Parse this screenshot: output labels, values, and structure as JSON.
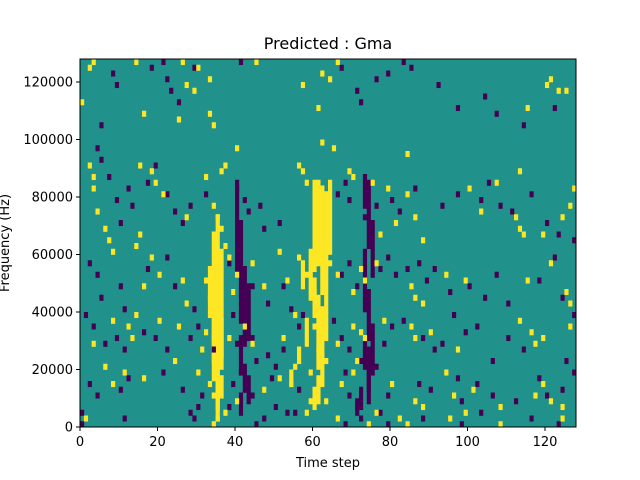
{
  "chart_data": {
    "type": "heatmap",
    "title": "Predicted : Gma",
    "xlabel": "Time step",
    "ylabel": "Frequency (Hz)",
    "xlim": [
      0,
      128
    ],
    "ylim": [
      0,
      128000
    ],
    "xticks": [
      0,
      20,
      40,
      60,
      80,
      100,
      120
    ],
    "yticks": [
      0,
      20000,
      40000,
      60000,
      80000,
      100000,
      120000
    ],
    "grid": false,
    "legend": "none",
    "colors": {
      "background": "#21918c",
      "high": "#fde725",
      "low": "#440154"
    },
    "cell": {
      "dx": 1,
      "dy": 2000
    },
    "high_cells": [
      [
        3,
        126000
      ],
      [
        2,
        124000
      ],
      [
        14,
        126000
      ],
      [
        26,
        126000
      ],
      [
        30,
        124000
      ],
      [
        45,
        126000
      ],
      [
        66,
        126000
      ],
      [
        27,
        118000
      ],
      [
        29,
        116000
      ],
      [
        33,
        120000
      ],
      [
        57,
        118000
      ],
      [
        64,
        120000
      ],
      [
        62,
        122000
      ],
      [
        0,
        112000
      ],
      [
        16,
        108000
      ],
      [
        25,
        106000
      ],
      [
        33,
        108000
      ],
      [
        34,
        104000
      ],
      [
        61,
        110000
      ],
      [
        40,
        96000
      ],
      [
        62,
        98000
      ],
      [
        65,
        96000
      ],
      [
        84,
        94000
      ],
      [
        115,
        110000
      ],
      [
        120,
        118000
      ],
      [
        121,
        120000
      ],
      [
        125,
        116000
      ],
      [
        123,
        116000
      ],
      [
        2,
        90000
      ],
      [
        3,
        86000
      ],
      [
        15,
        90000
      ],
      [
        18,
        88000
      ],
      [
        19,
        84000
      ],
      [
        21,
        80000
      ],
      [
        32,
        86000
      ],
      [
        36,
        88000
      ],
      [
        37,
        90000
      ],
      [
        57,
        88000
      ],
      [
        58,
        84000
      ],
      [
        56,
        90000
      ],
      [
        69,
        88000
      ],
      [
        70,
        86000
      ],
      [
        75,
        84000
      ],
      [
        79,
        82000
      ],
      [
        84,
        80000
      ],
      [
        100,
        82000
      ],
      [
        107,
        84000
      ],
      [
        113,
        88000
      ],
      [
        127,
        82000
      ],
      [
        3,
        82000
      ],
      [
        4,
        74000
      ],
      [
        6,
        68000
      ],
      [
        7,
        64000
      ],
      [
        8,
        60000
      ],
      [
        14,
        62000
      ],
      [
        15,
        66000
      ],
      [
        18,
        58000
      ],
      [
        27,
        72000
      ],
      [
        34,
        76000
      ],
      [
        35,
        72000
      ],
      [
        36,
        68000
      ],
      [
        37,
        62000
      ],
      [
        38,
        58000
      ],
      [
        51,
        60000
      ],
      [
        56,
        58000
      ],
      [
        77,
        66000
      ],
      [
        81,
        70000
      ],
      [
        86,
        72000
      ],
      [
        88,
        64000
      ],
      [
        103,
        74000
      ],
      [
        112,
        72000
      ],
      [
        113,
        68000
      ],
      [
        114,
        66000
      ],
      [
        119,
        66000
      ],
      [
        124,
        72000
      ],
      [
        126,
        76000
      ],
      [
        16,
        48000
      ],
      [
        20,
        52000
      ],
      [
        26,
        50000
      ],
      [
        27,
        42000
      ],
      [
        32,
        50000
      ],
      [
        33,
        44000
      ],
      [
        39,
        46000
      ],
      [
        40,
        52000
      ],
      [
        44,
        56000
      ],
      [
        47,
        48000
      ],
      [
        53,
        50000
      ],
      [
        58,
        52000
      ],
      [
        60,
        46000
      ],
      [
        64,
        56000
      ],
      [
        66,
        52000
      ],
      [
        70,
        46000
      ],
      [
        72,
        54000
      ],
      [
        73,
        50000
      ],
      [
        76,
        56000
      ],
      [
        85,
        48000
      ],
      [
        86,
        44000
      ],
      [
        88,
        42000
      ],
      [
        94,
        52000
      ],
      [
        99,
        50000
      ],
      [
        115,
        50000
      ],
      [
        121,
        56000
      ],
      [
        125,
        46000
      ],
      [
        126,
        42000
      ],
      [
        8,
        36000
      ],
      [
        12,
        34000
      ],
      [
        13,
        30000
      ],
      [
        14,
        38000
      ],
      [
        20,
        36000
      ],
      [
        25,
        34000
      ],
      [
        31,
        26000
      ],
      [
        32,
        32000
      ],
      [
        33,
        38000
      ],
      [
        38,
        30000
      ],
      [
        42,
        34000
      ],
      [
        44,
        28000
      ],
      [
        52,
        30000
      ],
      [
        55,
        38000
      ],
      [
        60,
        34000
      ],
      [
        61,
        26000
      ],
      [
        63,
        22000
      ],
      [
        66,
        28000
      ],
      [
        70,
        34000
      ],
      [
        72,
        32000
      ],
      [
        73,
        30000
      ],
      [
        78,
        36000
      ],
      [
        85,
        34000
      ],
      [
        86,
        30000
      ],
      [
        90,
        32000
      ],
      [
        97,
        26000
      ],
      [
        113,
        36000
      ],
      [
        116,
        32000
      ],
      [
        117,
        28000
      ],
      [
        119,
        30000
      ],
      [
        126,
        34000
      ],
      [
        3,
        28000
      ],
      [
        6,
        20000
      ],
      [
        8,
        14000
      ],
      [
        11,
        18000
      ],
      [
        16,
        16000
      ],
      [
        24,
        22000
      ],
      [
        30,
        18000
      ],
      [
        33,
        14000
      ],
      [
        34,
        10000
      ],
      [
        35,
        6000
      ],
      [
        40,
        8000
      ],
      [
        47,
        12000
      ],
      [
        51,
        16000
      ],
      [
        54,
        14000
      ],
      [
        55,
        20000
      ],
      [
        59,
        18000
      ],
      [
        60,
        12000
      ],
      [
        63,
        8000
      ],
      [
        67,
        14000
      ],
      [
        70,
        18000
      ],
      [
        71,
        22000
      ],
      [
        80,
        14000
      ],
      [
        86,
        8000
      ],
      [
        88,
        6000
      ],
      [
        94,
        18000
      ],
      [
        96,
        10000
      ],
      [
        99,
        4000
      ],
      [
        101,
        12000
      ],
      [
        108,
        6000
      ],
      [
        117,
        10000
      ],
      [
        119,
        14000
      ],
      [
        121,
        8000
      ],
      [
        124,
        6000
      ],
      [
        1,
        2000
      ],
      [
        34,
        0
      ],
      [
        35,
        2000
      ],
      [
        37,
        4000
      ],
      [
        58,
        4000
      ],
      [
        59,
        8000
      ],
      [
        66,
        2000
      ],
      [
        74,
        0
      ],
      [
        76,
        4000
      ],
      [
        82,
        2000
      ],
      [
        84,
        0
      ],
      [
        95,
        2000
      ],
      [
        108,
        0
      ],
      [
        124,
        2000
      ]
    ],
    "high_bands": [
      [
        35,
        72000,
        34000
      ],
      [
        34,
        66000,
        30000
      ],
      [
        36,
        60000,
        24000
      ],
      [
        33,
        54000,
        40000
      ],
      [
        34,
        48000,
        22000
      ],
      [
        35,
        42000,
        12000
      ],
      [
        36,
        36000,
        20000
      ],
      [
        34,
        30000,
        16000
      ],
      [
        35,
        22000,
        8000
      ],
      [
        36,
        16000,
        10000
      ],
      [
        35,
        10000,
        2000
      ],
      [
        60,
        84000,
        70000
      ],
      [
        61,
        84000,
        56000
      ],
      [
        62,
        82000,
        46000
      ],
      [
        63,
        80000,
        40000
      ],
      [
        64,
        84000,
        60000
      ],
      [
        60,
        70000,
        54000
      ],
      [
        59,
        60000,
        44000
      ],
      [
        60,
        50000,
        38000
      ],
      [
        61,
        44000,
        32000
      ],
      [
        62,
        40000,
        24000
      ],
      [
        63,
        38000,
        30000
      ],
      [
        61,
        30000,
        20000
      ],
      [
        62,
        24000,
        14000
      ],
      [
        61,
        16000,
        8000
      ],
      [
        60,
        10000,
        6000
      ],
      [
        57,
        56000,
        48000
      ],
      [
        58,
        36000,
        28000
      ],
      [
        56,
        26000,
        22000
      ],
      [
        54,
        18000,
        14000
      ]
    ],
    "low_cells": [
      [
        8,
        122000
      ],
      [
        9,
        118000
      ],
      [
        5,
        104000
      ],
      [
        4,
        96000
      ],
      [
        18,
        124000
      ],
      [
        21,
        126000
      ],
      [
        22,
        120000
      ],
      [
        23,
        116000
      ],
      [
        25,
        112000
      ],
      [
        29,
        124000
      ],
      [
        41,
        126000
      ],
      [
        67,
        124000
      ],
      [
        71,
        116000
      ],
      [
        72,
        112000
      ],
      [
        76,
        120000
      ],
      [
        79,
        122000
      ],
      [
        83,
        126000
      ],
      [
        85,
        124000
      ],
      [
        92,
        118000
      ],
      [
        97,
        110000
      ],
      [
        104,
        114000
      ],
      [
        107,
        108000
      ],
      [
        114,
        104000
      ],
      [
        122,
        110000
      ],
      [
        5,
        92000
      ],
      [
        7,
        86000
      ],
      [
        9,
        78000
      ],
      [
        10,
        70000
      ],
      [
        12,
        82000
      ],
      [
        13,
        76000
      ],
      [
        17,
        84000
      ],
      [
        19,
        90000
      ],
      [
        22,
        80000
      ],
      [
        24,
        74000
      ],
      [
        26,
        70000
      ],
      [
        28,
        76000
      ],
      [
        32,
        80000
      ],
      [
        40,
        82000
      ],
      [
        42,
        78000
      ],
      [
        43,
        74000
      ],
      [
        46,
        76000
      ],
      [
        47,
        68000
      ],
      [
        51,
        70000
      ],
      [
        66,
        80000
      ],
      [
        68,
        84000
      ],
      [
        69,
        78000
      ],
      [
        73,
        72000
      ],
      [
        76,
        76000
      ],
      [
        80,
        78000
      ],
      [
        82,
        74000
      ],
      [
        86,
        82000
      ],
      [
        93,
        76000
      ],
      [
        97,
        80000
      ],
      [
        103,
        78000
      ],
      [
        105,
        84000
      ],
      [
        108,
        76000
      ],
      [
        111,
        74000
      ],
      [
        116,
        80000
      ],
      [
        120,
        70000
      ],
      [
        123,
        66000
      ],
      [
        127,
        64000
      ],
      [
        122,
        58000
      ],
      [
        2,
        56000
      ],
      [
        4,
        52000
      ],
      [
        5,
        44000
      ],
      [
        10,
        48000
      ],
      [
        11,
        40000
      ],
      [
        17,
        54000
      ],
      [
        22,
        58000
      ],
      [
        24,
        48000
      ],
      [
        29,
        40000
      ],
      [
        38,
        56000
      ],
      [
        39,
        46000
      ],
      [
        44,
        48000
      ],
      [
        48,
        42000
      ],
      [
        52,
        48000
      ],
      [
        54,
        40000
      ],
      [
        67,
        52000
      ],
      [
        69,
        56000
      ],
      [
        71,
        48000
      ],
      [
        77,
        54000
      ],
      [
        79,
        58000
      ],
      [
        81,
        52000
      ],
      [
        84,
        54000
      ],
      [
        87,
        56000
      ],
      [
        89,
        50000
      ],
      [
        91,
        54000
      ],
      [
        95,
        46000
      ],
      [
        100,
        48000
      ],
      [
        104,
        44000
      ],
      [
        107,
        52000
      ],
      [
        110,
        42000
      ],
      [
        118,
        50000
      ],
      [
        124,
        44000
      ],
      [
        1,
        38000
      ],
      [
        3,
        34000
      ],
      [
        6,
        28000
      ],
      [
        9,
        30000
      ],
      [
        11,
        26000
      ],
      [
        16,
        32000
      ],
      [
        19,
        30000
      ],
      [
        22,
        26000
      ],
      [
        28,
        30000
      ],
      [
        30,
        34000
      ],
      [
        34,
        26000
      ],
      [
        39,
        38000
      ],
      [
        40,
        28000
      ],
      [
        44,
        30000
      ],
      [
        45,
        22000
      ],
      [
        48,
        24000
      ],
      [
        50,
        20000
      ],
      [
        52,
        26000
      ],
      [
        56,
        34000
      ],
      [
        57,
        38000
      ],
      [
        65,
        36000
      ],
      [
        67,
        30000
      ],
      [
        69,
        26000
      ],
      [
        72,
        22000
      ],
      [
        74,
        26000
      ],
      [
        76,
        20000
      ],
      [
        78,
        28000
      ],
      [
        80,
        34000
      ],
      [
        83,
        36000
      ],
      [
        88,
        30000
      ],
      [
        91,
        26000
      ],
      [
        93,
        28000
      ],
      [
        96,
        38000
      ],
      [
        99,
        32000
      ],
      [
        102,
        34000
      ],
      [
        106,
        22000
      ],
      [
        110,
        30000
      ],
      [
        114,
        26000
      ],
      [
        125,
        22000
      ],
      [
        127,
        38000
      ],
      [
        2,
        14000
      ],
      [
        4,
        10000
      ],
      [
        10,
        12000
      ],
      [
        12,
        16000
      ],
      [
        21,
        18000
      ],
      [
        26,
        12000
      ],
      [
        31,
        10000
      ],
      [
        38,
        6000
      ],
      [
        39,
        14000
      ],
      [
        41,
        18000
      ],
      [
        44,
        10000
      ],
      [
        49,
        16000
      ],
      [
        50,
        6000
      ],
      [
        53,
        4000
      ],
      [
        56,
        12000
      ],
      [
        68,
        18000
      ],
      [
        69,
        10000
      ],
      [
        71,
        6000
      ],
      [
        74,
        12000
      ],
      [
        77,
        4000
      ],
      [
        79,
        10000
      ],
      [
        87,
        14000
      ],
      [
        90,
        12000
      ],
      [
        97,
        16000
      ],
      [
        98,
        8000
      ],
      [
        102,
        14000
      ],
      [
        106,
        10000
      ],
      [
        112,
        8000
      ],
      [
        118,
        16000
      ],
      [
        120,
        10000
      ],
      [
        124,
        12000
      ],
      [
        127,
        18000
      ],
      [
        0,
        4000
      ],
      [
        0,
        0
      ],
      [
        11,
        2000
      ],
      [
        28,
        4000
      ],
      [
        29,
        2000
      ],
      [
        30,
        6000
      ],
      [
        45,
        0
      ],
      [
        47,
        2000
      ],
      [
        55,
        4000
      ],
      [
        68,
        0
      ],
      [
        72,
        2000
      ],
      [
        79,
        0
      ],
      [
        88,
        2000
      ],
      [
        98,
        0
      ],
      [
        103,
        4000
      ],
      [
        116,
        2000
      ],
      [
        123,
        0
      ]
    ],
    "low_bands": [
      [
        40,
        84000,
        52000
      ],
      [
        41,
        70000,
        36000
      ],
      [
        42,
        54000,
        28000
      ],
      [
        43,
        48000,
        30000
      ],
      [
        41,
        30000,
        18000
      ],
      [
        42,
        20000,
        12000
      ],
      [
        43,
        16000,
        8000
      ],
      [
        41,
        10000,
        4000
      ],
      [
        73,
        86000,
        76000
      ],
      [
        74,
        84000,
        62000
      ],
      [
        75,
        70000,
        52000
      ],
      [
        73,
        60000,
        40000
      ],
      [
        74,
        46000,
        30000
      ],
      [
        75,
        34000,
        18000
      ],
      [
        73,
        28000,
        20000
      ],
      [
        74,
        24000,
        14000
      ],
      [
        74,
        18000,
        8000
      ],
      [
        72,
        12000,
        6000
      ],
      [
        71,
        8000,
        4000
      ]
    ]
  }
}
